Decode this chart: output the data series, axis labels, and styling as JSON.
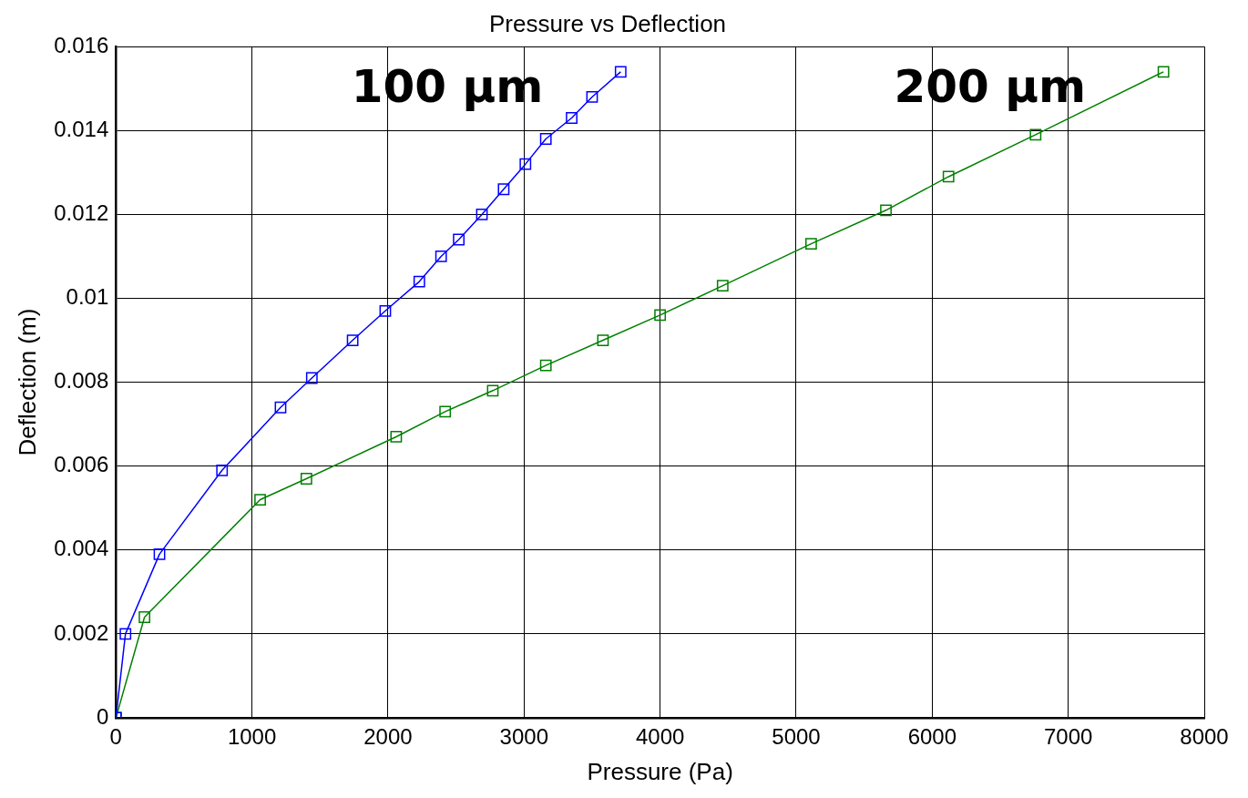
{
  "chart_data": {
    "type": "line",
    "title": "Pressure vs Deflection",
    "xlabel": "Pressure (Pa)",
    "ylabel": "Deflection (m)",
    "xlim": [
      0,
      8000
    ],
    "xticks": [
      0,
      1000,
      2000,
      3000,
      4000,
      5000,
      6000,
      7000,
      8000
    ],
    "ylim": [
      0,
      0.016
    ],
    "yticks": [
      0,
      0.002,
      0.004,
      0.006,
      0.008,
      0.01,
      0.012,
      0.014,
      0.016
    ],
    "grid": true,
    "legend": false,
    "marker": "square",
    "line_style": "solid",
    "series": [
      {
        "name": "100 µm",
        "color": "#0000ff",
        "x": [
          0,
          70,
          320,
          780,
          1210,
          1440,
          1740,
          1980,
          2230,
          2390,
          2520,
          2690,
          2850,
          3010,
          3160,
          3350,
          3500,
          3710
        ],
        "values": [
          0,
          0.002,
          0.0039,
          0.0059,
          0.0074,
          0.0081,
          0.009,
          0.0097,
          0.0104,
          0.011,
          0.0114,
          0.012,
          0.0126,
          0.0132,
          0.0138,
          0.0143,
          0.0148,
          0.0154
        ]
      },
      {
        "name": "200 µm",
        "color": "#008000",
        "x": [
          0,
          210,
          1060,
          1400,
          2060,
          2420,
          2770,
          3160,
          3580,
          4000,
          4460,
          5110,
          5660,
          6120,
          6760,
          7700
        ],
        "values": [
          0,
          0.0024,
          0.0052,
          0.0057,
          0.0067,
          0.0073,
          0.0078,
          0.0084,
          0.009,
          0.0096,
          0.0103,
          0.0113,
          0.0121,
          0.0129,
          0.0139,
          0.0154
        ]
      }
    ]
  }
}
